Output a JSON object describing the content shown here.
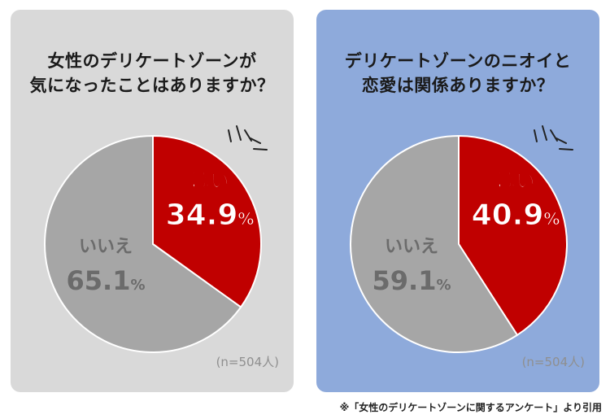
{
  "footer_text": "※「女性のデリケートゾーンに関するアンケート」より引用",
  "chart_data": [
    {
      "type": "pie",
      "title_lines": [
        "女性のデリケートゾーンが",
        "気になったことはありますか？"
      ],
      "slices": [
        {
          "label": "はい",
          "value": 34.9,
          "value_text": "34.9",
          "color": "#c00000"
        },
        {
          "label": "いいえ",
          "value": 65.1,
          "value_text": "65.1",
          "color": "#a6a6a6"
        }
      ],
      "unit": "%",
      "note": "(n=504人)",
      "panel_color": "#d9d9d9"
    },
    {
      "type": "pie",
      "title_lines": [
        "デリケートゾーンのニオイと",
        "恋愛は関係ありますか？"
      ],
      "slices": [
        {
          "label": "はい",
          "value": 40.9,
          "value_text": "40.9",
          "color": "#c00000"
        },
        {
          "label": "いいえ",
          "value": 59.1,
          "value_text": "59.1",
          "color": "#a6a6a6"
        }
      ],
      "unit": "%",
      "note": "(n=504人)",
      "panel_color": "#8eaadb"
    }
  ]
}
